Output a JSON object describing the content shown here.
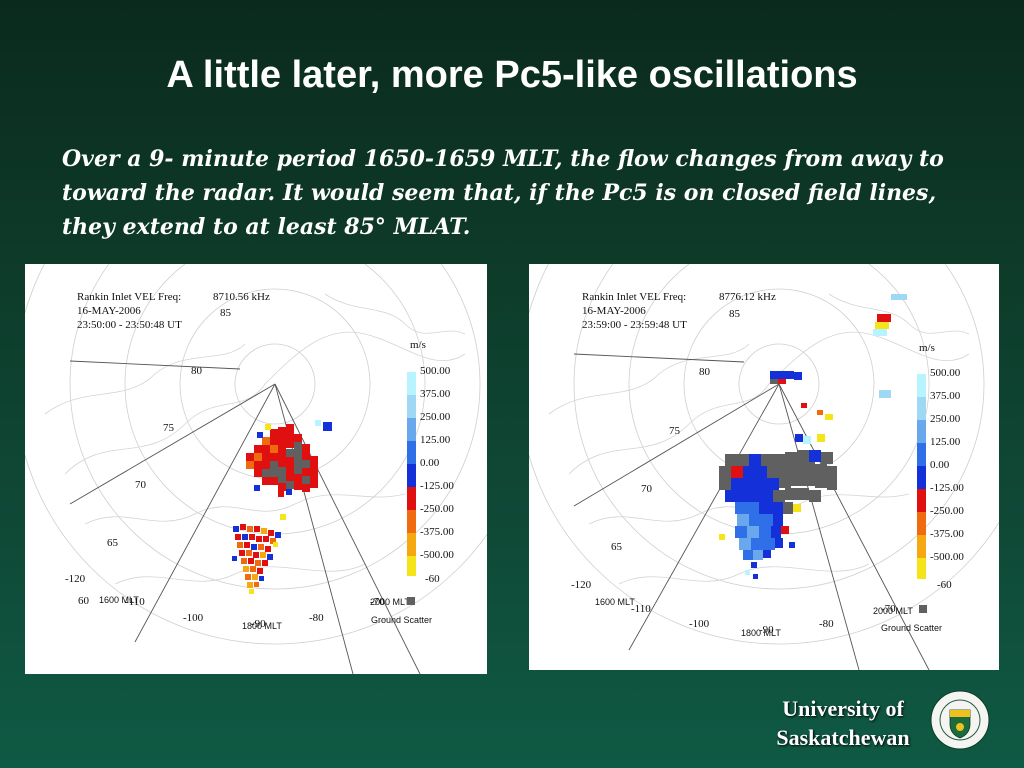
{
  "slide": {
    "title": "A little later, more Pc5-like oscillations",
    "body": "Over a 9- minute period 1650-1659 MLT, the flow changes from away to toward the radar. It would seem that, if the Pc5 is on closed field lines, they extend to at least 85° MLAT.",
    "footer_university": "University of Saskatchewan"
  },
  "colorbar": {
    "units": "m/s",
    "ticks": [
      "500.00",
      "375.00",
      "250.00",
      "125.00",
      "0.00",
      "-125.00",
      "-250.00",
      "-375.00",
      "-500.00"
    ],
    "colors": [
      "#b8f4ff",
      "#9ed8f4",
      "#6aa8ee",
      "#2f6fe8",
      "#1430d8",
      "#e01010",
      "#f06a10",
      "#f5a810",
      "#f5e41a"
    ],
    "ground_scatter_label": "Ground Scatter",
    "ground_scatter_color": "#606060"
  },
  "plots": [
    {
      "header_line1_left": "Rankin Inlet VEL Freq:",
      "header_line1_right": "8710.56 kHz",
      "header_line2": "16-MAY-2006",
      "header_line3": "23:50:00 - 23:50:48 UT",
      "lat_labels": [
        "85",
        "80",
        "75",
        "70",
        "65",
        "60"
      ],
      "lon_labels": [
        "-120",
        "-110",
        "-100",
        "-90",
        "-80",
        "-70",
        "-60"
      ],
      "mlt_labels": [
        "1600 MLT",
        "1800 MLT",
        "2000 MLT"
      ]
    },
    {
      "header_line1_left": "Rankin Inlet VEL Freq:",
      "header_line1_right": "8776.12 kHz",
      "header_line2": "16-MAY-2006",
      "header_line3": "23:59:00 - 23:59:48 UT",
      "lat_labels": [
        "85",
        "80",
        "75",
        "70",
        "65"
      ],
      "lon_labels": [
        "-120",
        "-110",
        "-100",
        "-90",
        "-80",
        "-70",
        "-60"
      ],
      "mlt_labels": [
        "1600 MLT",
        "1800 MLT",
        "2000 MLT"
      ]
    }
  ]
}
